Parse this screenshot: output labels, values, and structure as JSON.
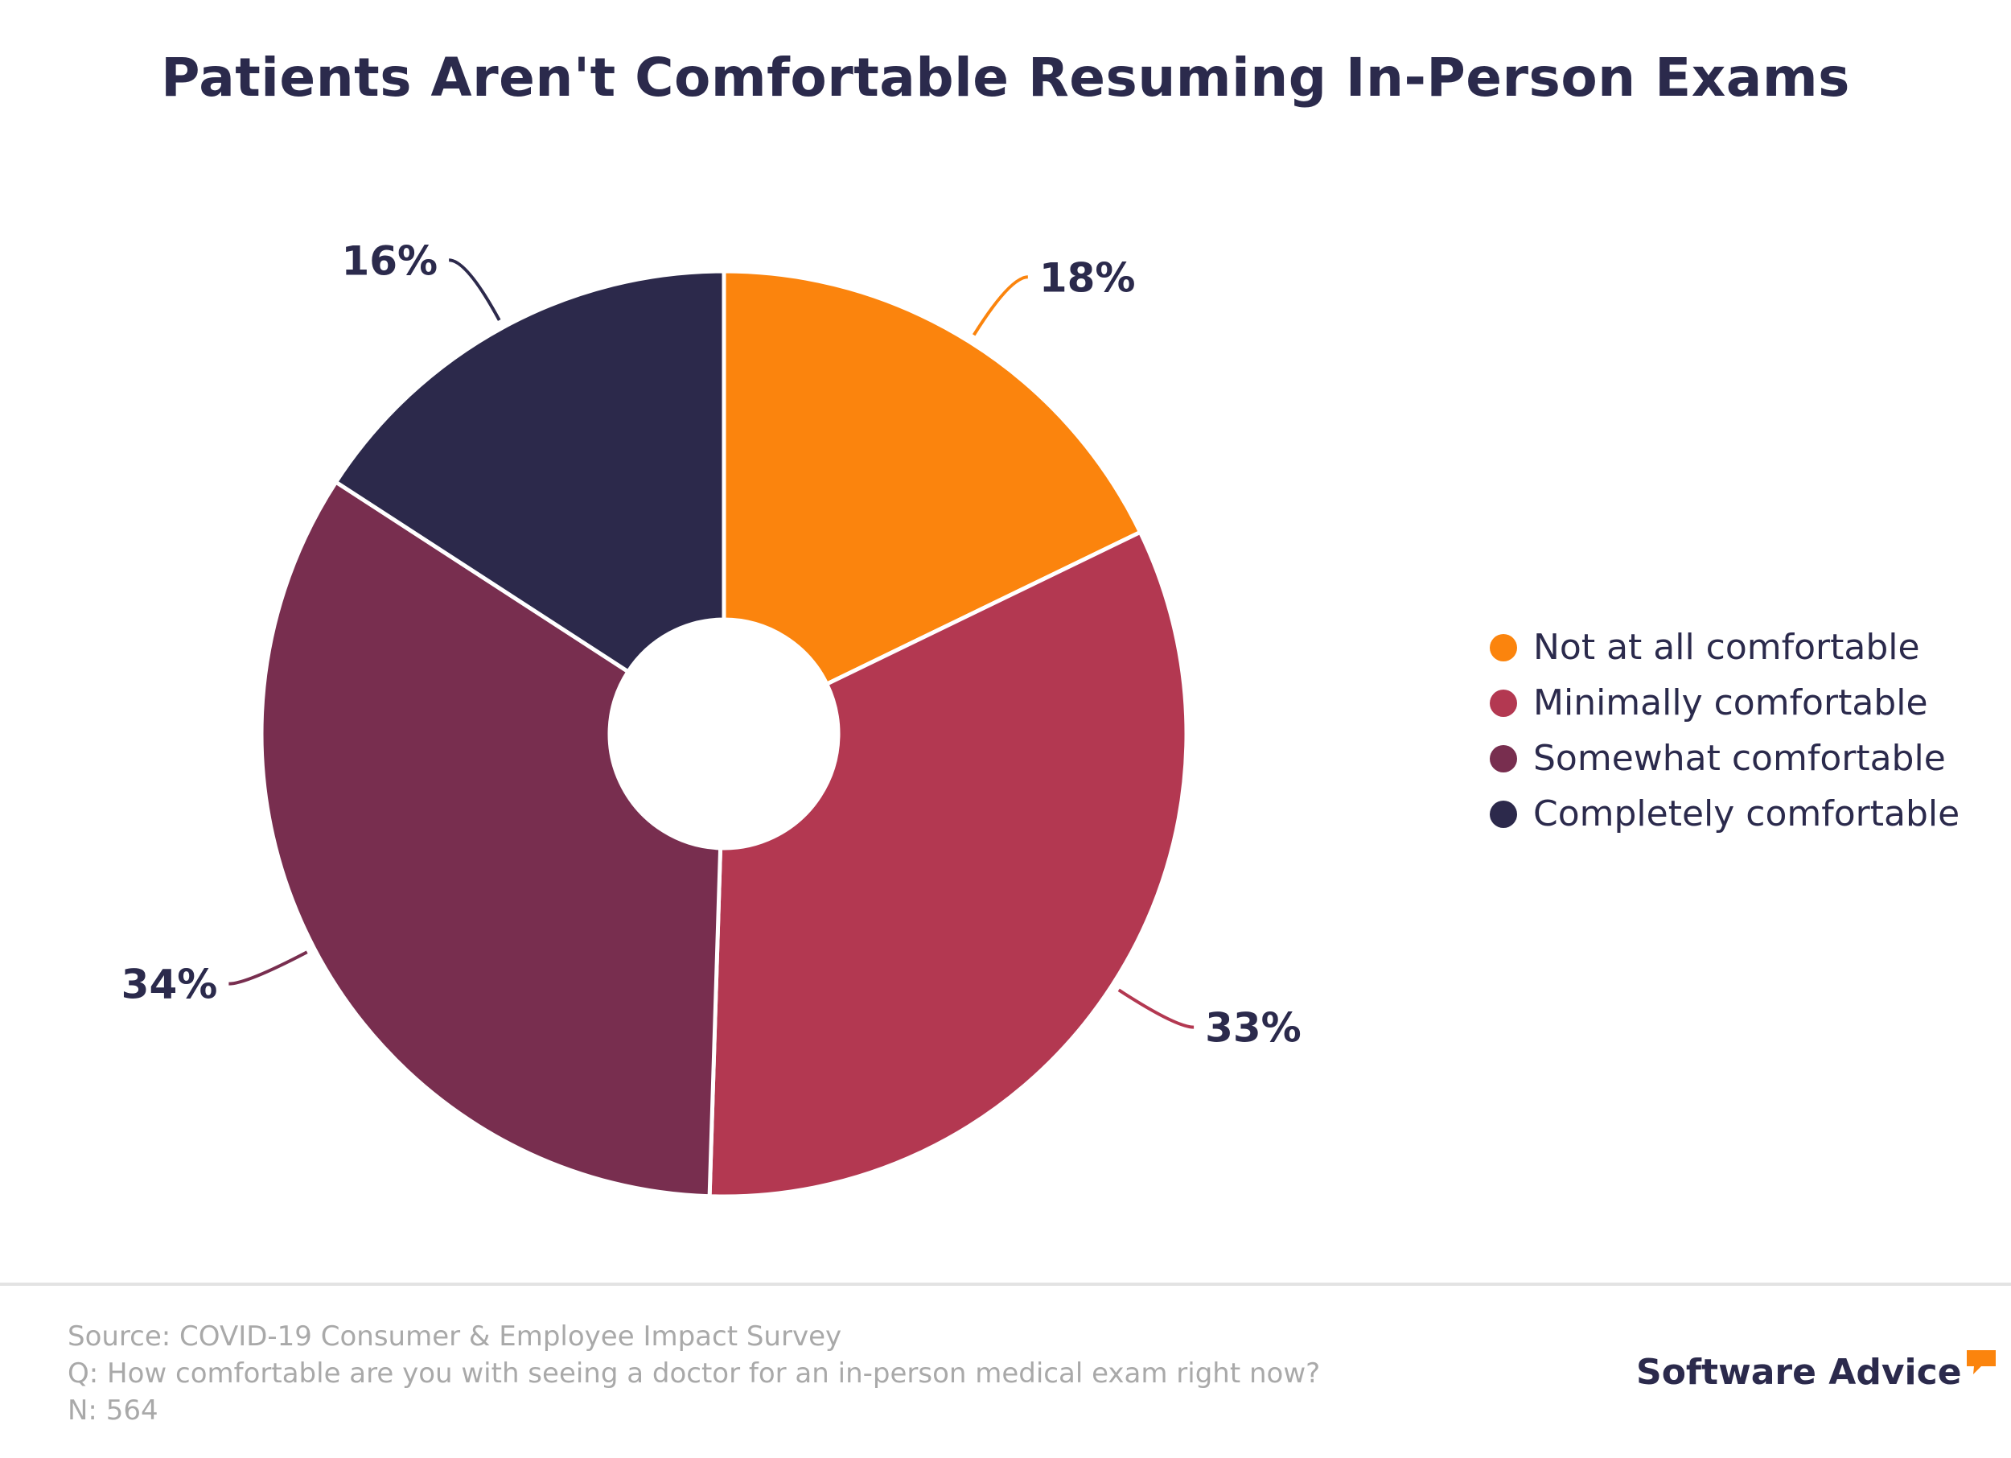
{
  "chart_data": {
    "type": "pie",
    "title": "Patients Aren't Comfortable Resuming In-Person Exams",
    "donut": true,
    "legend_position": "right",
    "slices": [
      {
        "label": "Not at all comfortable",
        "value": 18,
        "display": "18%",
        "color": "#fb840d"
      },
      {
        "label": "Minimally comfortable",
        "value": 33,
        "display": "33%",
        "color": "#b33851"
      },
      {
        "label": "Somewhat comfortable",
        "value": 34,
        "display": "34%",
        "color": "#782e4f"
      },
      {
        "label": "Completely comfortable",
        "value": 16,
        "display": "16%",
        "color": "#2c294b"
      }
    ]
  },
  "footer": {
    "source": "Source: COVID-19 Consumer & Employee Impact Survey",
    "question": "Q: How comfortable are you with seeing a doctor for an in-person medical exam right now?",
    "sample": "N: 564"
  },
  "brand": {
    "name": "Software Advice",
    "logo_icon": "speech-bubble-icon",
    "accent_color": "#fb840d"
  }
}
